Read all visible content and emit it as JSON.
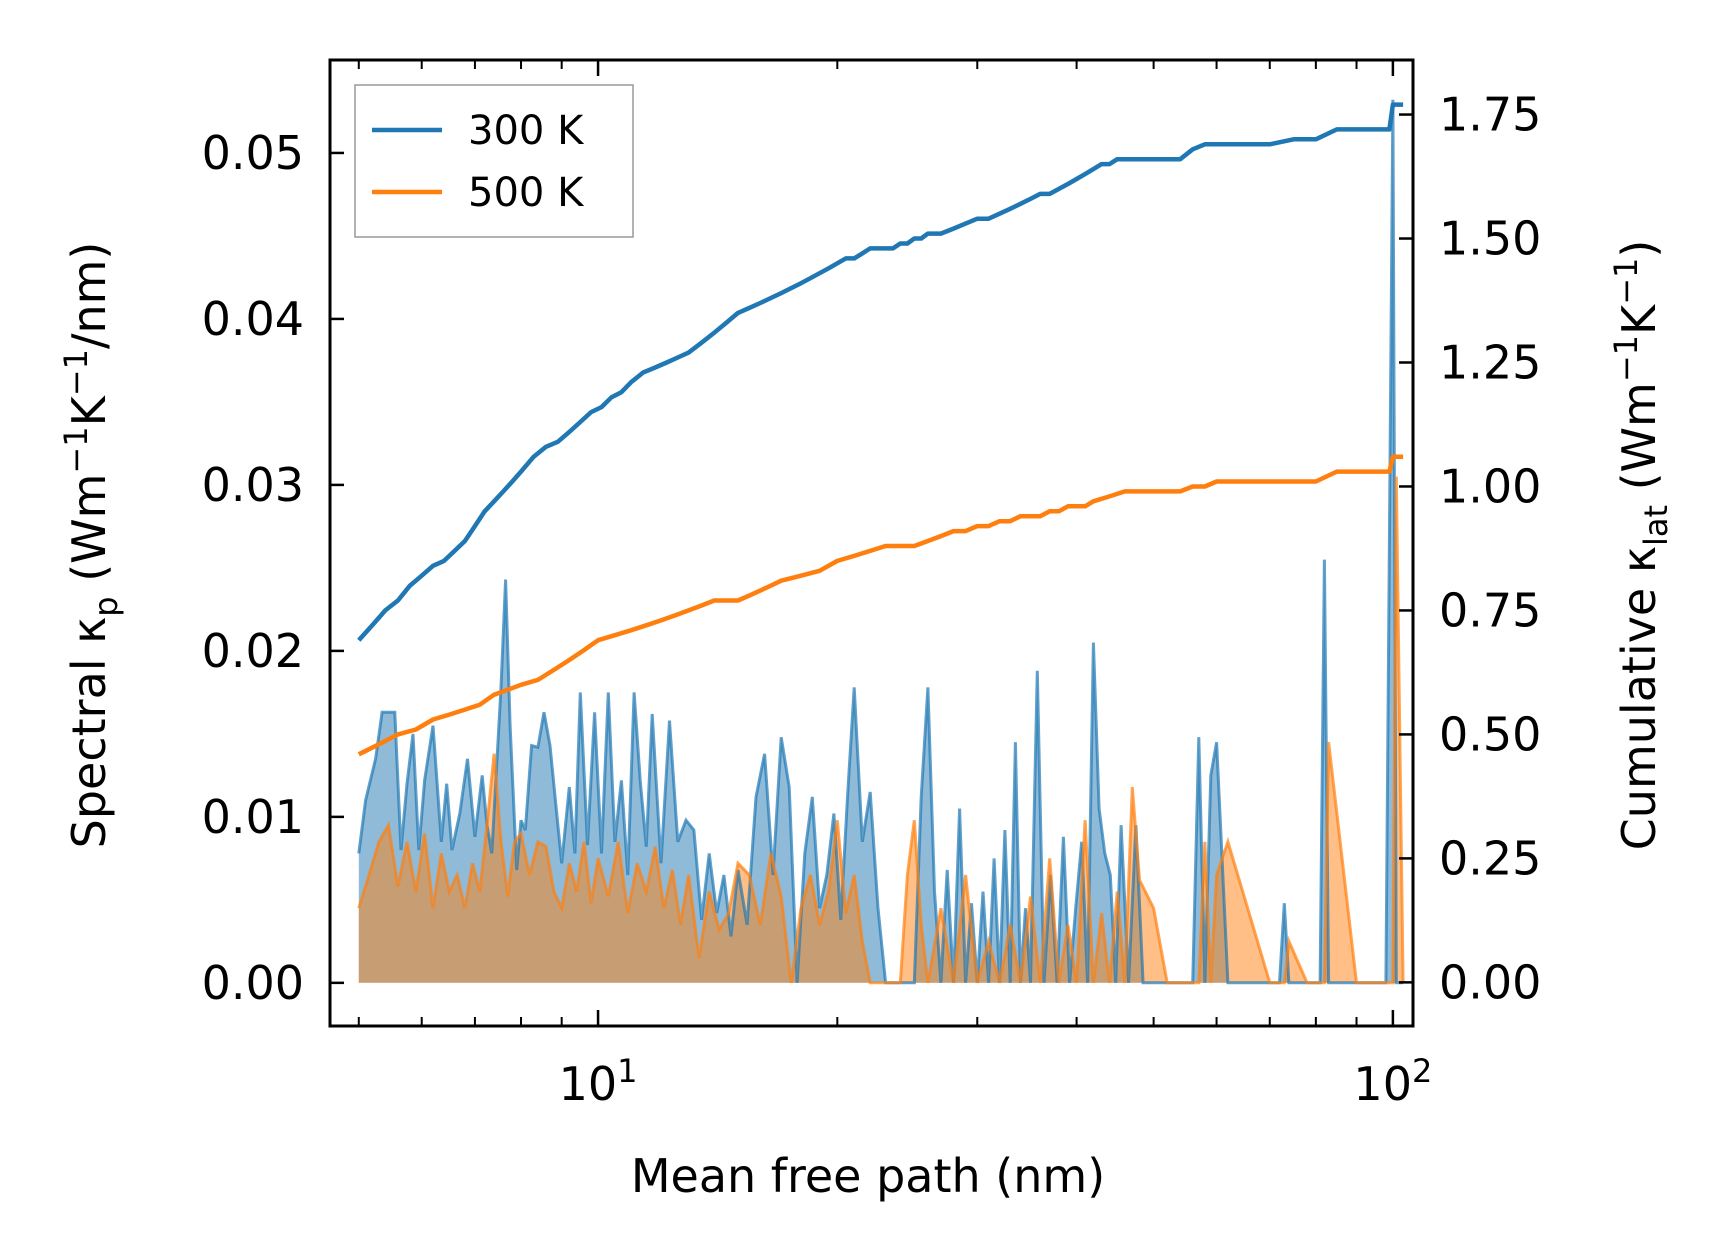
{
  "chart_data": {
    "type": "area",
    "xlabel": "Mean free path (nm)",
    "xscale": "log",
    "xlim": [
      4.6,
      106
    ],
    "x_tick_labels": [
      {
        "base": "10",
        "exp": "1",
        "value": 10
      },
      {
        "base": "10",
        "exp": "2",
        "value": 100
      }
    ],
    "left_axis": {
      "label_parts": [
        "Spectral κ",
        "p",
        " (Wm",
        "−1",
        "K",
        "−1",
        "/nm)"
      ],
      "ylim": [
        -0.0026,
        0.0556
      ],
      "ticks": [
        0.0,
        0.01,
        0.02,
        0.03,
        0.04,
        0.05
      ],
      "tick_labels": [
        "0.00",
        "0.01",
        "0.02",
        "0.03",
        "0.04",
        "0.05"
      ]
    },
    "right_axis": {
      "label_parts": [
        "Cumulative κ",
        "lat",
        " (Wm",
        "−1",
        "K",
        "−1",
        ")"
      ],
      "ylim": [
        -0.088,
        1.86
      ],
      "ticks": [
        0.0,
        0.25,
        0.5,
        0.75,
        1.0,
        1.25,
        1.5,
        1.75
      ],
      "tick_labels": [
        "0.00",
        "0.25",
        "0.50",
        "0.75",
        "1.00",
        "1.25",
        "1.50",
        "1.75"
      ]
    },
    "legend": {
      "position": "top-left"
    },
    "series": [
      {
        "name": "300 K",
        "color": "#1f77b4",
        "spectral_x": [
          5.0,
          5.1,
          5.25,
          5.35,
          5.45,
          5.55,
          5.65,
          5.75,
          5.85,
          5.95,
          6.05,
          6.2,
          6.35,
          6.45,
          6.55,
          6.7,
          6.85,
          7.0,
          7.15,
          7.25,
          7.35,
          7.45,
          7.55,
          7.65,
          7.75,
          7.9,
          8.0,
          8.1,
          8.25,
          8.4,
          8.55,
          8.7,
          8.85,
          9.0,
          9.2,
          9.35,
          9.5,
          9.7,
          9.9,
          10.1,
          10.3,
          10.5,
          10.7,
          10.9,
          11.1,
          11.3,
          11.5,
          11.7,
          12.0,
          12.3,
          12.6,
          12.9,
          13.2,
          13.5,
          13.8,
          14.1,
          14.4,
          14.7,
          15.0,
          15.4,
          15.8,
          16.2,
          16.6,
          17.0,
          17.4,
          17.8,
          18.2,
          18.6,
          19.0,
          19.4,
          19.8,
          20.2,
          20.6,
          21.0,
          21.5,
          22.0,
          22.5,
          23.0,
          23.5,
          24.0,
          24.5,
          25.0,
          25.5,
          26.0,
          26.5,
          27.0,
          27.5,
          28.0,
          28.5,
          29.0,
          29.5,
          30.0,
          30.5,
          31.0,
          31.5,
          32.0,
          32.5,
          33.0,
          33.5,
          34.0,
          34.5,
          35.0,
          35.7,
          36.4,
          37.1,
          37.8,
          38.5,
          39.2,
          39.9,
          40.6,
          41.3,
          42.0,
          42.7,
          43.4,
          44.1,
          44.8,
          45.5,
          46.5,
          47.5,
          48.5,
          50,
          52,
          54,
          56,
          57,
          58,
          59,
          60,
          62,
          66,
          70,
          72,
          73,
          74,
          75,
          78,
          80,
          81,
          82,
          83,
          90,
          98,
          100,
          101,
          103
        ],
        "spectral": [
          0.0078,
          0.011,
          0.0135,
          0.0163,
          0.0163,
          0.0163,
          0.008,
          0.012,
          0.015,
          0.008,
          0.0122,
          0.0155,
          0.0085,
          0.012,
          0.008,
          0.0102,
          0.0135,
          0.0088,
          0.0125,
          0.0095,
          0.0078,
          0.0128,
          0.0178,
          0.0243,
          0.0155,
          0.0068,
          0.0098,
          0.0092,
          0.0143,
          0.0142,
          0.0163,
          0.0143,
          0.0107,
          0.0072,
          0.0118,
          0.0078,
          0.0175,
          0.0083,
          0.0163,
          0.0078,
          0.0175,
          0.0085,
          0.0122,
          0.0065,
          0.0175,
          0.0122,
          0.0082,
          0.0162,
          0.0072,
          0.0158,
          0.0085,
          0.0098,
          0.0092,
          0.0038,
          0.0078,
          0.0042,
          0.0065,
          0.0028,
          0.0068,
          0.0035,
          0.0112,
          0.0138,
          0.0065,
          0.0148,
          0.0118,
          0.0,
          0.0078,
          0.0112,
          0.0045,
          0.0065,
          0.0102,
          0.0038,
          0.0112,
          0.0178,
          0.0085,
          0.0115,
          0.0045,
          0.0,
          0.0,
          0.0,
          0.0,
          0.0,
          0.0112,
          0.0178,
          0.0055,
          0.0,
          0.0068,
          0.0,
          0.0105,
          0.0,
          0.0048,
          0.0,
          0.0055,
          0.0,
          0.0075,
          0.0,
          0.0092,
          0.0,
          0.0145,
          0.0,
          0.0045,
          0.0,
          0.0188,
          0.0,
          0.0065,
          0.0,
          0.0088,
          0.0,
          0.0045,
          0.0085,
          0.0,
          0.0205,
          0.0105,
          0.0078,
          0.0065,
          0.0,
          0.0095,
          0.0,
          0.0095,
          0.0,
          0.0,
          0.0,
          0.0,
          0.0,
          0.0148,
          0.0,
          0.0125,
          0.0145,
          0.0,
          0.0,
          0.0,
          0.0,
          0.0048,
          0.0,
          0.0,
          0.0,
          0.0,
          0.0,
          0.0255,
          0.0,
          0.0,
          0.0,
          0.0532,
          0.0,
          0.0
        ],
        "cumulative_x": [
          5.0,
          5.2,
          5.4,
          5.6,
          5.8,
          6.0,
          6.2,
          6.4,
          6.6,
          6.8,
          7.0,
          7.2,
          7.4,
          7.6,
          7.8,
          8.0,
          8.3,
          8.6,
          8.9,
          9.2,
          9.5,
          9.8,
          10.1,
          10.4,
          10.7,
          11.0,
          11.4,
          11.8,
          12.2,
          12.6,
          13.0,
          13.5,
          14.0,
          14.5,
          15.0,
          15.5,
          16.0,
          16.5,
          17.0,
          17.5,
          18.0,
          18.5,
          19.0,
          19.5,
          20.0,
          20.5,
          21.0,
          21.5,
          22.0,
          22.5,
          23.0,
          23.5,
          24.0,
          24.5,
          25.0,
          25.5,
          26.0,
          27.0,
          28.0,
          29.0,
          30.0,
          31.0,
          32.0,
          33.0,
          34.0,
          35.0,
          36.0,
          37.0,
          38.0,
          39.0,
          40.0,
          41.0,
          42.0,
          43.0,
          44.0,
          45.0,
          46.0,
          48.0,
          50.0,
          52.0,
          54.0,
          56.0,
          58.0,
          60.0,
          65.0,
          70.0,
          75.0,
          80.0,
          85.0,
          90.0,
          95.0,
          98.0,
          99.0,
          100.0,
          101.0,
          103.0
        ],
        "cumulative": [
          0.69,
          0.72,
          0.75,
          0.77,
          0.8,
          0.82,
          0.84,
          0.85,
          0.87,
          0.89,
          0.92,
          0.95,
          0.97,
          0.99,
          1.01,
          1.03,
          1.06,
          1.08,
          1.09,
          1.11,
          1.13,
          1.15,
          1.16,
          1.18,
          1.19,
          1.21,
          1.23,
          1.24,
          1.25,
          1.26,
          1.27,
          1.29,
          1.31,
          1.33,
          1.35,
          1.36,
          1.37,
          1.38,
          1.39,
          1.4,
          1.41,
          1.42,
          1.43,
          1.44,
          1.45,
          1.46,
          1.46,
          1.47,
          1.48,
          1.48,
          1.48,
          1.48,
          1.49,
          1.49,
          1.5,
          1.5,
          1.51,
          1.51,
          1.52,
          1.53,
          1.54,
          1.54,
          1.55,
          1.56,
          1.57,
          1.58,
          1.59,
          1.59,
          1.6,
          1.61,
          1.62,
          1.63,
          1.64,
          1.65,
          1.65,
          1.66,
          1.66,
          1.66,
          1.66,
          1.66,
          1.66,
          1.68,
          1.69,
          1.69,
          1.69,
          1.69,
          1.7,
          1.7,
          1.72,
          1.72,
          1.72,
          1.72,
          1.72,
          1.77,
          1.77,
          1.77
        ]
      },
      {
        "name": "500 K",
        "color": "#ff7f0e",
        "spectral_x": [
          5.0,
          5.15,
          5.3,
          5.45,
          5.6,
          5.75,
          5.9,
          6.05,
          6.2,
          6.35,
          6.5,
          6.65,
          6.8,
          6.95,
          7.1,
          7.25,
          7.4,
          7.55,
          7.7,
          7.85,
          8.0,
          8.2,
          8.4,
          8.6,
          8.8,
          9.0,
          9.2,
          9.4,
          9.6,
          9.8,
          10.0,
          10.3,
          10.6,
          10.9,
          11.2,
          11.5,
          11.8,
          12.1,
          12.4,
          12.7,
          13.0,
          13.4,
          13.8,
          14.2,
          14.6,
          15.0,
          15.5,
          16.0,
          16.5,
          17.0,
          17.5,
          18.0,
          18.5,
          19.0,
          19.5,
          20.0,
          20.5,
          21.0,
          21.5,
          22.0,
          22.5,
          23.0,
          23.5,
          24.0,
          24.5,
          25.0,
          25.5,
          26.0,
          27.0,
          28.0,
          29.0,
          30.0,
          31.0,
          32.0,
          33.0,
          34.0,
          35.0,
          36.0,
          37.0,
          38.0,
          39.0,
          40.0,
          41.0,
          42.0,
          43.0,
          44.0,
          45.0,
          46.0,
          47.0,
          48.0,
          50.0,
          52.0,
          54.0,
          56.0,
          57.0,
          58.0,
          59.0,
          60.0,
          62.0,
          70.0,
          72.0,
          73.0,
          74.0,
          78.0,
          80.0,
          81.0,
          82.0,
          83.0,
          90.0,
          98.0,
          100.0,
          101.0,
          103.0
        ],
        "spectral": [
          0.0045,
          0.0065,
          0.0085,
          0.0095,
          0.0058,
          0.0085,
          0.0055,
          0.009,
          0.0045,
          0.0078,
          0.0055,
          0.0065,
          0.0045,
          0.0072,
          0.0055,
          0.0095,
          0.0138,
          0.0085,
          0.0052,
          0.0085,
          0.009,
          0.0065,
          0.0085,
          0.0082,
          0.0055,
          0.0045,
          0.0072,
          0.0055,
          0.0085,
          0.0048,
          0.0075,
          0.0052,
          0.0085,
          0.0042,
          0.0072,
          0.0055,
          0.0082,
          0.0045,
          0.0068,
          0.0035,
          0.0065,
          0.0015,
          0.0055,
          0.0032,
          0.0042,
          0.0072,
          0.0065,
          0.0035,
          0.0078,
          0.0052,
          0.0,
          0.0045,
          0.0065,
          0.0035,
          0.0055,
          0.0098,
          0.0042,
          0.0065,
          0.0025,
          0.0,
          0.0,
          0.0,
          0.0,
          0.0,
          0.0065,
          0.0098,
          0.0035,
          0.0,
          0.0045,
          0.0,
          0.0065,
          0.0,
          0.0025,
          0.0,
          0.0035,
          0.0,
          0.0052,
          0.0,
          0.0075,
          0.0,
          0.0035,
          0.0,
          0.0098,
          0.0,
          0.0042,
          0.0,
          0.0055,
          0.0,
          0.0118,
          0.0062,
          0.0045,
          0.0,
          0.0,
          0.0,
          0.0,
          0.0085,
          0.0,
          0.0065,
          0.0085,
          0.0,
          0.0,
          0.0,
          0.0025,
          0.0,
          0.0,
          0.0,
          0.0,
          0.0145,
          0.0,
          0.0,
          0.0,
          0.0305,
          0.0,
          0.0
        ],
        "cumulative_x": [
          5.0,
          5.3,
          5.6,
          5.9,
          6.2,
          6.5,
          6.8,
          7.1,
          7.4,
          7.7,
          8.0,
          8.4,
          8.8,
          9.2,
          9.6,
          10.0,
          10.5,
          11.0,
          11.5,
          12.0,
          12.5,
          13.0,
          13.5,
          14.0,
          14.5,
          15.0,
          15.5,
          16.0,
          16.5,
          17.0,
          18.0,
          19.0,
          20.0,
          21.0,
          22.0,
          23.0,
          24.0,
          25.0,
          26.0,
          27.0,
          28.0,
          29.0,
          30.0,
          31.0,
          32.0,
          33.0,
          34.0,
          35.0,
          36.0,
          37.0,
          38.0,
          39.0,
          40.0,
          41.0,
          42.0,
          44.0,
          46.0,
          48.0,
          50.0,
          52.0,
          54.0,
          56.0,
          58.0,
          60.0,
          65.0,
          70.0,
          75.0,
          80.0,
          85.0,
          90.0,
          95.0,
          98.0,
          99.0,
          100.0,
          101.0,
          103.0
        ],
        "cumulative": [
          0.46,
          0.48,
          0.5,
          0.51,
          0.53,
          0.54,
          0.55,
          0.56,
          0.58,
          0.59,
          0.6,
          0.61,
          0.63,
          0.65,
          0.67,
          0.69,
          0.7,
          0.71,
          0.72,
          0.73,
          0.74,
          0.75,
          0.76,
          0.77,
          0.77,
          0.77,
          0.78,
          0.79,
          0.8,
          0.81,
          0.82,
          0.83,
          0.85,
          0.86,
          0.87,
          0.88,
          0.88,
          0.88,
          0.89,
          0.9,
          0.91,
          0.91,
          0.92,
          0.92,
          0.93,
          0.93,
          0.94,
          0.94,
          0.94,
          0.95,
          0.95,
          0.96,
          0.96,
          0.96,
          0.97,
          0.98,
          0.99,
          0.99,
          0.99,
          0.99,
          0.99,
          1.0,
          1.0,
          1.01,
          1.01,
          1.01,
          1.01,
          1.01,
          1.03,
          1.03,
          1.03,
          1.03,
          1.03,
          1.06,
          1.06,
          1.06
        ]
      }
    ]
  }
}
